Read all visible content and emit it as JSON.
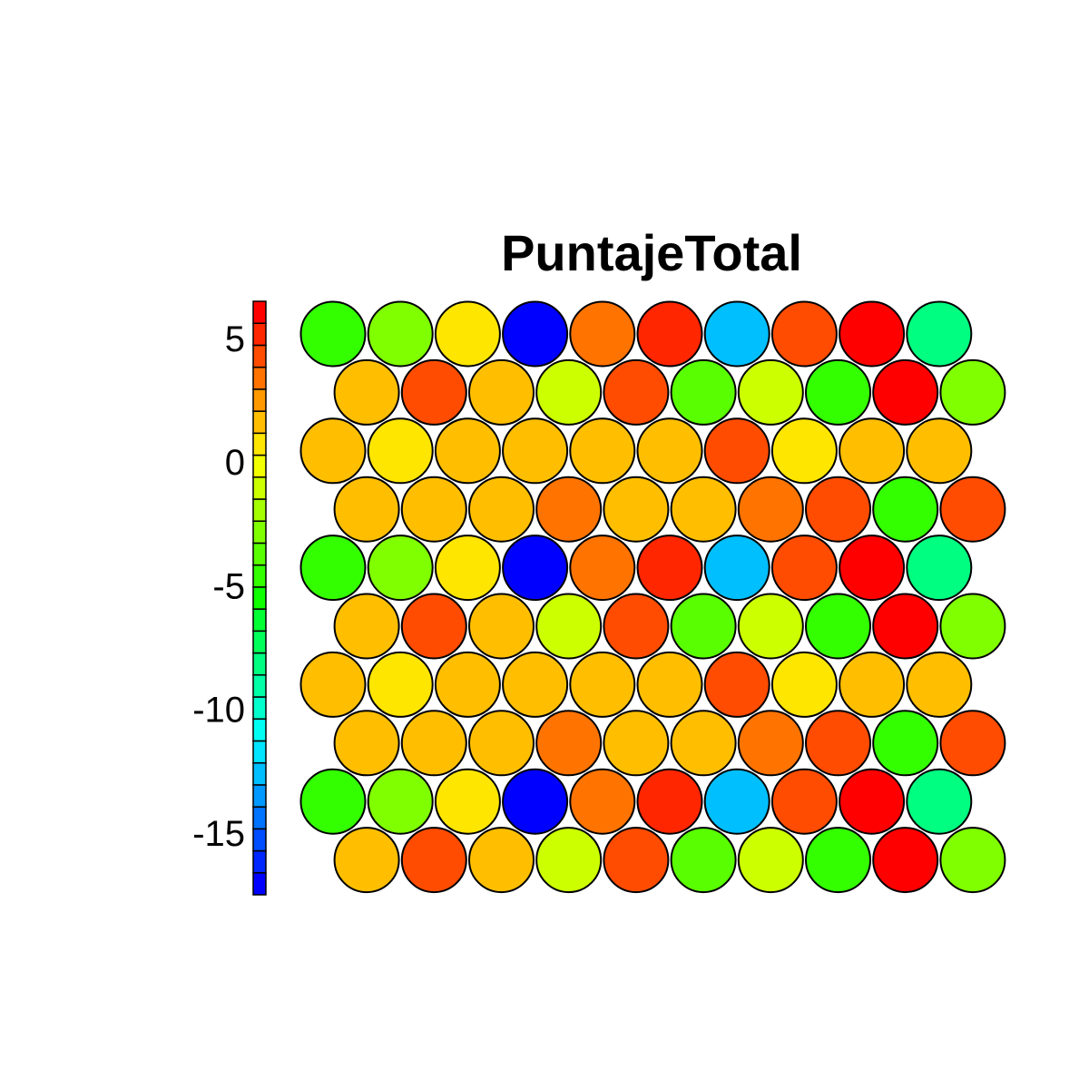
{
  "chart_data": {
    "type": "heatmap",
    "subtype": "som-hexagonal-property-map",
    "title": "PuntajeTotal",
    "grid": {
      "columns": 10,
      "rows": 10,
      "topology": "hexagonal"
    },
    "colorbar": {
      "position": "left",
      "min": -17.5,
      "max": 6.5,
      "ticks": [
        5,
        0,
        -5,
        -10,
        -15
      ],
      "tick_labels": [
        "5",
        "0",
        "-5",
        "-10",
        "-15"
      ],
      "colors": [
        "#0000FF",
        "#0026FF",
        "#004CFF",
        "#0073FF",
        "#0099FF",
        "#00BFFF",
        "#00E6FF",
        "#00FFF2",
        "#00FFCC",
        "#00FFA6",
        "#00FF80",
        "#00FF59",
        "#00FF33",
        "#0DFF00",
        "#33FF00",
        "#59FF00",
        "#80FF00",
        "#A6FF00",
        "#CCFF00",
        "#F2FF00",
        "#FFE600",
        "#FFBF00",
        "#FF9900",
        "#FF7300",
        "#FF4C00",
        "#FF2600",
        "#FF0000"
      ]
    },
    "rows_top_to_bottom": [
      {
        "offset": false,
        "values": [
          -4.5,
          -2.5,
          0.5,
          -17,
          3,
          5.5,
          -12.5,
          4,
          6,
          -8.5
        ]
      },
      {
        "offset": true,
        "values": [
          1.5,
          4,
          1.5,
          -1.5,
          4,
          -3.5,
          -1,
          -4.5,
          6,
          -2.5
        ]
      },
      {
        "offset": false,
        "values": [
          1.5,
          0.5,
          1.5,
          1.5,
          1.5,
          1.5,
          4,
          0.5,
          1.5,
          1.5
        ]
      },
      {
        "offset": true,
        "values": [
          1.5,
          1.5,
          1.5,
          3,
          1.5,
          1.5,
          3,
          4,
          -4.5,
          4
        ]
      },
      {
        "offset": false,
        "values": [
          -4.5,
          -2.5,
          0.5,
          -17,
          3,
          5.5,
          -12.5,
          4,
          6,
          -8.5
        ]
      },
      {
        "offset": true,
        "values": [
          1.5,
          4,
          1.5,
          -1.5,
          4,
          -3.5,
          -1,
          -4.5,
          6,
          -2.5
        ]
      },
      {
        "offset": false,
        "values": [
          1.5,
          0.5,
          1.5,
          1.5,
          1.5,
          1.5,
          4,
          0.5,
          1.5,
          1.5
        ]
      },
      {
        "offset": true,
        "values": [
          1.5,
          1.5,
          1.5,
          3,
          1.5,
          1.5,
          3,
          4,
          -4.5,
          4
        ]
      },
      {
        "offset": false,
        "values": [
          -4.5,
          -2.5,
          0.5,
          -17,
          3,
          5.5,
          -12.5,
          4,
          6,
          -8.5
        ]
      },
      {
        "offset": true,
        "values": [
          1.5,
          4,
          1.5,
          -1.5,
          4,
          -3.5,
          -1,
          -4.5,
          6,
          -2.5
        ]
      }
    ]
  }
}
